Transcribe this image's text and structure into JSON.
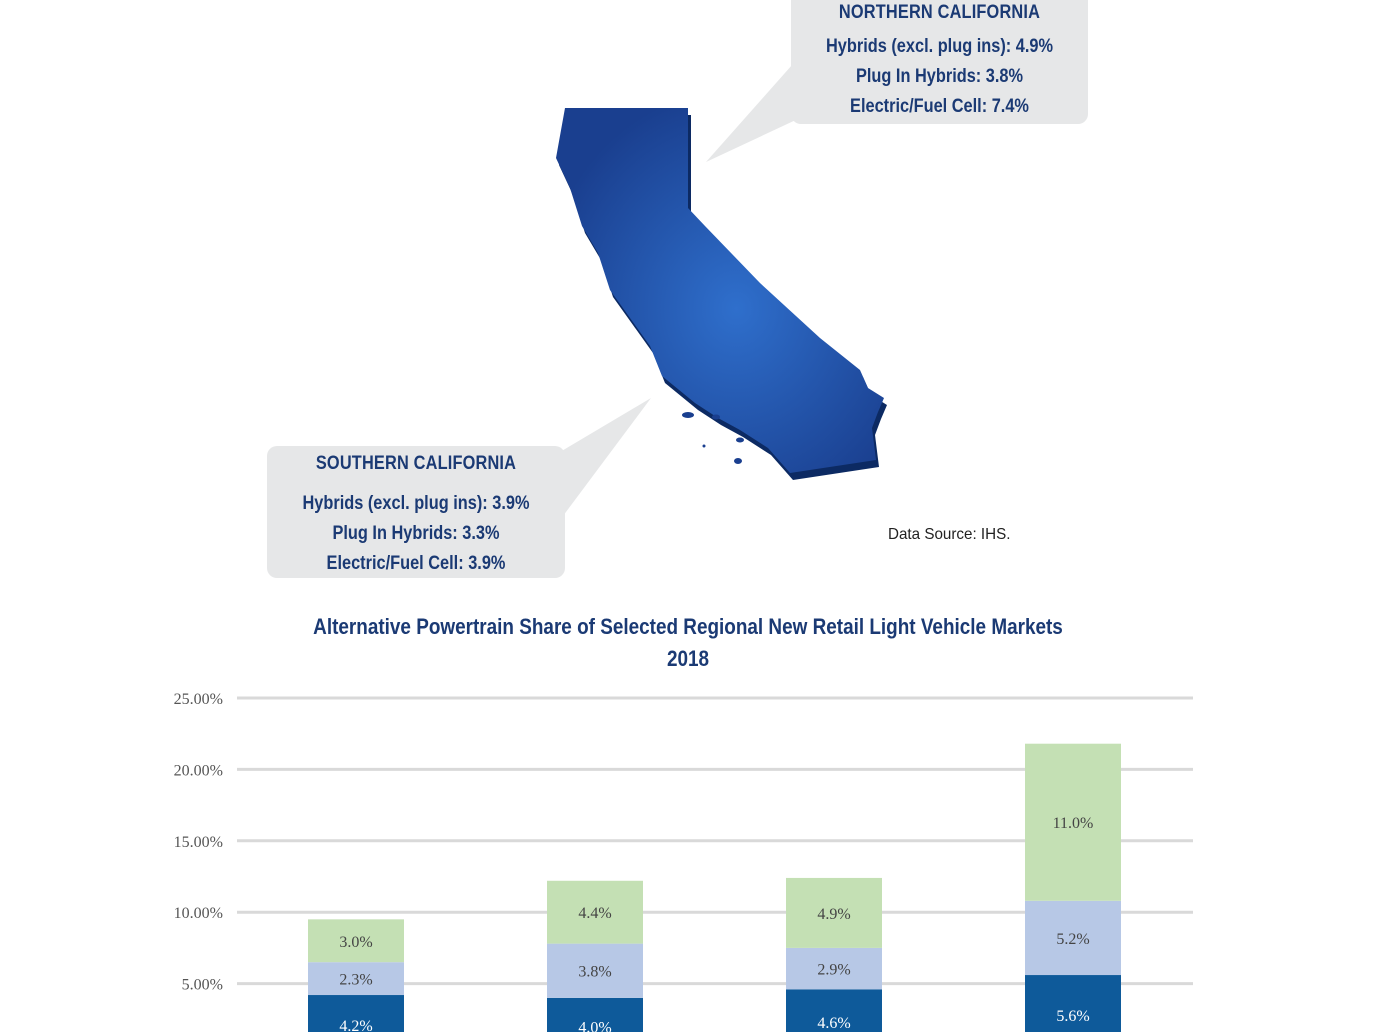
{
  "callouts": {
    "north": {
      "title": "NORTHERN CALIFORNIA",
      "lines": [
        "Hybrids (excl. plug ins): 4.9%",
        "Plug In Hybrids: 3.8%",
        "Electric/Fuel Cell: 7.4%"
      ]
    },
    "south": {
      "title": "SOUTHERN CALIFORNIA",
      "lines": [
        "Hybrids (excl. plug ins): 3.9%",
        "Plug In Hybrids: 3.3%",
        "Electric/Fuel Cell: 3.9%"
      ]
    }
  },
  "source": "Data Source: IHS.",
  "map": {
    "fill": "#2a63b8",
    "shadow": "#0f2f6e"
  },
  "chart_data": {
    "type": "bar",
    "stacked": true,
    "title": "Alternative Powertrain Share of Selected Regional New Retail Light Vehicle Markets",
    "subtitle": "2018",
    "ylim": [
      0,
      25
    ],
    "yticks": [
      "5.00%",
      "10.00%",
      "15.00%",
      "20.00%",
      "25.00%"
    ],
    "ytick_values": [
      5,
      10,
      15,
      20,
      25
    ],
    "grid": true,
    "categories": [
      "",
      "",
      "",
      ""
    ],
    "series": [
      {
        "color": "#0e5a9a",
        "values": [
          4.2,
          4.0,
          4.6,
          5.6
        ],
        "labels": [
          "4.2%",
          "4.0%",
          "4.6%",
          "5.6%"
        ],
        "label_color": "#ffffff"
      },
      {
        "color": "#b7c8e6",
        "values": [
          2.3,
          3.8,
          2.9,
          5.2
        ],
        "labels": [
          "2.3%",
          "3.8%",
          "2.9%",
          "5.2%"
        ],
        "label_color": "#444444"
      },
      {
        "color": "#c4e0b4",
        "values": [
          3.0,
          4.4,
          4.9,
          11.0
        ],
        "labels": [
          "3.0%",
          "4.4%",
          "4.9%",
          "11.0%"
        ],
        "label_color": "#444444"
      }
    ]
  }
}
